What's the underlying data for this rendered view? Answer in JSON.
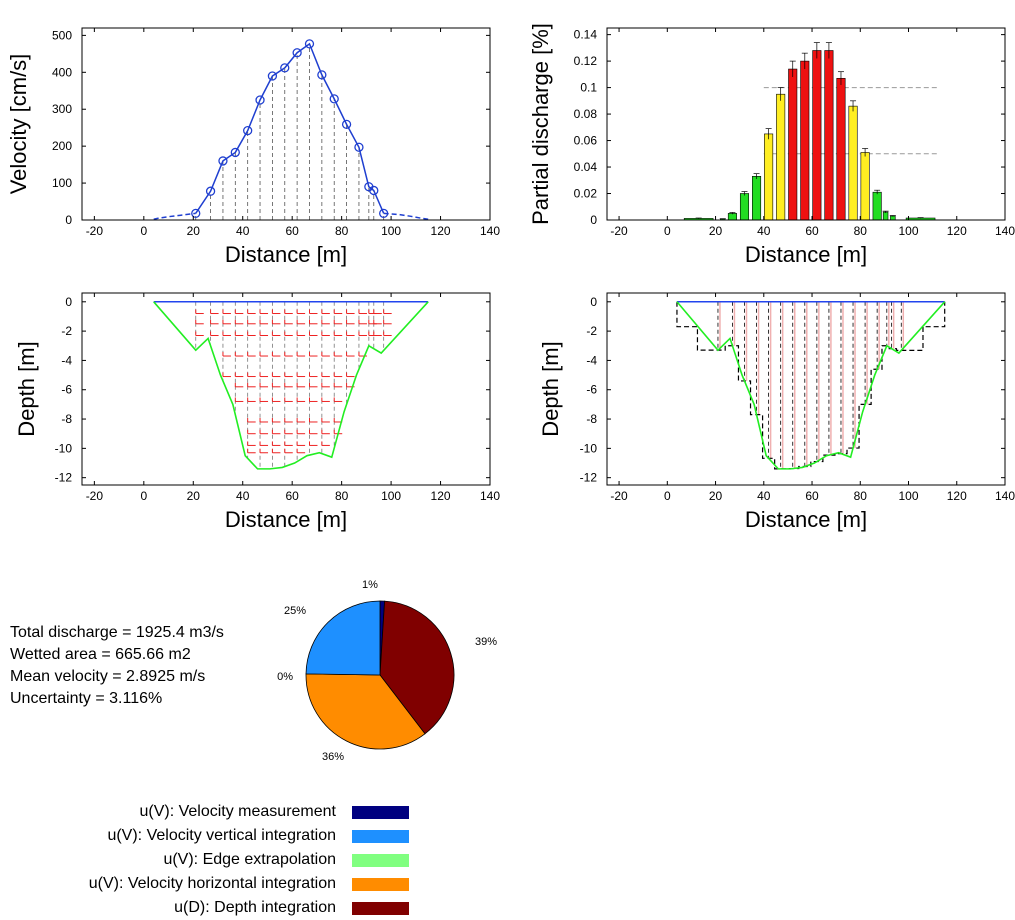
{
  "colors": {
    "velocity_line": "#1f3fd0",
    "bar_green": "#22dd22",
    "bar_yellow": "#ffee22",
    "bar_red": "#ee1111",
    "bed_green": "#22ee22",
    "surface_blue": "#2244ee",
    "vector_red": "#ee2222"
  },
  "summary": {
    "total_discharge": "Total discharge = 1925.4 m3/s",
    "wetted_area": "Wetted area = 665.66 m2",
    "mean_velocity": "Mean velocity = 2.8925 m/s",
    "uncertainty": "Uncertainty = 3.116%"
  },
  "legend": [
    {
      "label": "u(V): Velocity measurement",
      "color": "#000080"
    },
    {
      "label": "u(V): Velocity vertical integration",
      "color": "#1e90ff"
    },
    {
      "label": "u(V): Edge extrapolation",
      "color": "#80ff80"
    },
    {
      "label": "u(V): Velocity horizontal integration",
      "color": "#ff8c00"
    },
    {
      "label": "u(D): Depth integration",
      "color": "#800000"
    }
  ],
  "chart_data": [
    {
      "type": "line",
      "xlabel": "Distance [m]",
      "ylabel": "Velocity [cm/s]",
      "xlim": [
        -25,
        140
      ],
      "ylim": [
        0,
        520
      ],
      "xticks": [
        -20,
        0,
        20,
        40,
        60,
        80,
        100,
        120,
        140
      ],
      "yticks": [
        0,
        100,
        200,
        300,
        400,
        500
      ],
      "grid": false,
      "verticals_dashed": true,
      "series": [
        {
          "style": "measured",
          "x": [
            21,
            27,
            32,
            37,
            42,
            47,
            52,
            57,
            62,
            67,
            72,
            77,
            82,
            87,
            91,
            93,
            97
          ],
          "y": [
            18,
            78,
            160,
            183,
            242,
            325,
            390,
            412,
            453,
            477,
            393,
            328,
            259,
            197,
            90,
            80,
            18
          ]
        },
        {
          "style": "extrapolated-left",
          "x": [
            4,
            6,
            10,
            15,
            21
          ],
          "y": [
            2,
            5,
            9,
            13,
            18
          ]
        },
        {
          "style": "extrapolated-right",
          "x": [
            97,
            103,
            108,
            112,
            115
          ],
          "y": [
            18,
            15,
            10,
            5,
            2
          ]
        }
      ]
    },
    {
      "type": "bar",
      "xlabel": "Distance [m]",
      "ylabel": "Partial discharge [%]",
      "xlim": [
        -25,
        140
      ],
      "ylim": [
        0,
        0.145
      ],
      "xticks": [
        -20,
        0,
        20,
        40,
        60,
        80,
        100,
        120,
        140
      ],
      "yticks": [
        0,
        0.02,
        0.04,
        0.06,
        0.08,
        0.1,
        0.12,
        0.14
      ],
      "ytick_labels": [
        "0",
        "0.02",
        "0.04",
        "0.06",
        "0.08",
        "0.1",
        "0.12",
        "0.14"
      ],
      "reference_lines_dashed": [
        0.05,
        0.1
      ],
      "grid": false,
      "bars": [
        {
          "x": 13,
          "w": 12,
          "value": 0.0012,
          "err": 0.0003,
          "color": "green"
        },
        {
          "x": 23,
          "w": 2,
          "value": 0.0008,
          "err": 0.0002,
          "color": "green"
        },
        {
          "x": 27,
          "w": 3.5,
          "value": 0.005,
          "err": 0.0007,
          "color": "green"
        },
        {
          "x": 32,
          "w": 3.5,
          "value": 0.02,
          "err": 0.0015,
          "color": "green"
        },
        {
          "x": 37,
          "w": 3.5,
          "value": 0.033,
          "err": 0.002,
          "color": "green"
        },
        {
          "x": 42,
          "w": 3.5,
          "value": 0.065,
          "err": 0.004,
          "color": "yellow"
        },
        {
          "x": 47,
          "w": 3.5,
          "value": 0.095,
          "err": 0.005,
          "color": "yellow"
        },
        {
          "x": 52,
          "w": 3.5,
          "value": 0.114,
          "err": 0.006,
          "color": "red"
        },
        {
          "x": 57,
          "w": 3.5,
          "value": 0.12,
          "err": 0.006,
          "color": "red"
        },
        {
          "x": 62,
          "w": 3.5,
          "value": 0.128,
          "err": 0.006,
          "color": "red"
        },
        {
          "x": 67,
          "w": 3.5,
          "value": 0.128,
          "err": 0.006,
          "color": "red"
        },
        {
          "x": 72,
          "w": 3.5,
          "value": 0.107,
          "err": 0.005,
          "color": "red"
        },
        {
          "x": 77,
          "w": 3.5,
          "value": 0.086,
          "err": 0.004,
          "color": "yellow"
        },
        {
          "x": 82,
          "w": 3.5,
          "value": 0.051,
          "err": 0.003,
          "color": "yellow"
        },
        {
          "x": 87,
          "w": 3.5,
          "value": 0.021,
          "err": 0.0015,
          "color": "green"
        },
        {
          "x": 90.5,
          "w": 2,
          "value": 0.006,
          "err": 0.0007,
          "color": "green"
        },
        {
          "x": 93.5,
          "w": 2,
          "value": 0.003,
          "err": 0.0004,
          "color": "green"
        },
        {
          "x": 105,
          "w": 12,
          "value": 0.0015,
          "err": 0.0003,
          "color": "green"
        }
      ]
    },
    {
      "type": "line",
      "xlabel": "Distance [m]",
      "ylabel": "Depth [m]",
      "xlim": [
        -25,
        140
      ],
      "ylim": [
        -12.5,
        0.6
      ],
      "xticks": [
        -20,
        0,
        20,
        40,
        60,
        80,
        100,
        120,
        140
      ],
      "yticks": [
        0,
        -2,
        -4,
        -6,
        -8,
        -10,
        -12
      ],
      "grid": false,
      "water_surface": {
        "x": [
          4,
          115
        ],
        "y": [
          0,
          0
        ]
      },
      "bed_profile": {
        "x": [
          4,
          21,
          26,
          31,
          36,
          41,
          46,
          51,
          56,
          61,
          66,
          71,
          76,
          81,
          86,
          91,
          96,
          115
        ],
        "y": [
          0,
          -3.3,
          -2.5,
          -5.0,
          -7.0,
          -10.5,
          -11.4,
          -11.4,
          -11.3,
          -11.0,
          -10.5,
          -10.3,
          -10.6,
          -7.5,
          -5.0,
          -3.0,
          -3.5,
          0
        ]
      },
      "verticals_x": [
        21,
        27,
        32,
        37,
        42,
        47,
        52,
        57,
        62,
        67,
        72,
        77,
        82,
        87,
        91,
        93,
        97
      ],
      "vector_rows": [
        -0.8,
        -1.5,
        -2.3,
        -3.7,
        -5.1,
        -5.8,
        -6.8,
        -8.2,
        -9.0,
        -9.8,
        -10.3
      ]
    },
    {
      "type": "area",
      "xlabel": "Distance [m]",
      "ylabel": "Depth [m]",
      "xlim": [
        -25,
        140
      ],
      "ylim": [
        -12.5,
        0.6
      ],
      "xticks": [
        -20,
        0,
        20,
        40,
        60,
        80,
        100,
        120,
        140
      ],
      "yticks": [
        0,
        -2,
        -4,
        -6,
        -8,
        -10,
        -12
      ],
      "grid": false,
      "verticals_x": [
        21,
        27,
        32,
        37,
        42,
        47,
        52,
        57,
        62,
        67,
        72,
        77,
        82,
        87,
        91,
        93,
        97
      ]
    },
    {
      "type": "pie",
      "slices": [
        {
          "name": "u(V): Velocity measurement",
          "value": 1,
          "label": "1%"
        },
        {
          "name": "u(D): Depth integration",
          "value": 39,
          "label": "39%"
        },
        {
          "name": "u(V): Velocity horizontal integration",
          "value": 36,
          "label": "36%"
        },
        {
          "name": "u(V): Edge extrapolation",
          "value": 0,
          "label": "0%"
        },
        {
          "name": "u(V): Velocity vertical integration",
          "value": 25,
          "label": "25%"
        }
      ]
    }
  ]
}
